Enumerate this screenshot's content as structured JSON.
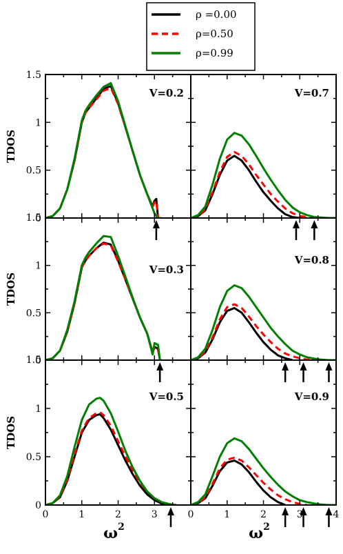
{
  "chart_data": {
    "type": "line",
    "xlabel": "ω",
    "xlabel_superscript": "2",
    "ylabel": "TDOS",
    "xlim": [
      0,
      4
    ],
    "xticks": [
      "0",
      "1",
      "2",
      "3",
      "4"
    ],
    "ylim": [
      0,
      1.5
    ],
    "yticks": [
      "0",
      "0.5",
      "1",
      "1.5"
    ],
    "overlap_label": "1.5",
    "grid": false,
    "legend": {
      "placement": "top-center",
      "entries": [
        {
          "name": "ρ =0.00",
          "color": "#000000",
          "dash": "solid"
        },
        {
          "name": "ρ=0.50",
          "color": "#ff0000",
          "dash": "dashed"
        },
        {
          "name": "ρ=0.99",
          "color": "#008000",
          "dash": "solid"
        }
      ]
    },
    "panels": [
      {
        "label": "V=0.2",
        "row": 0,
        "col": 0,
        "label_pos": "upper-right",
        "arrows": [
          3.05
        ],
        "series": [
          {
            "name": "ρ =0.00",
            "color": "#000000",
            "x": [
              0,
              0.2,
              0.4,
              0.6,
              0.8,
              1.0,
              1.1,
              1.2,
              1.4,
              1.6,
              1.8,
              2.0,
              2.2,
              2.4,
              2.6,
              2.8,
              2.95,
              3.0,
              3.05,
              3.1,
              3.2
            ],
            "y": [
              0,
              0.02,
              0.1,
              0.3,
              0.6,
              1.0,
              1.1,
              1.15,
              1.25,
              1.35,
              1.38,
              1.2,
              0.95,
              0.7,
              0.45,
              0.25,
              0.12,
              0.18,
              0.2,
              0.0,
              0.0
            ]
          },
          {
            "name": "ρ=0.50",
            "color": "#ff0000",
            "x": [
              0,
              0.2,
              0.4,
              0.6,
              0.8,
              1.0,
              1.1,
              1.2,
              1.4,
              1.6,
              1.8,
              2.0,
              2.2,
              2.4,
              2.6,
              2.8,
              2.95,
              3.0,
              3.05,
              3.1,
              3.2
            ],
            "y": [
              0,
              0.02,
              0.1,
              0.3,
              0.6,
              1.0,
              1.1,
              1.15,
              1.24,
              1.33,
              1.36,
              1.19,
              0.95,
              0.7,
              0.45,
              0.25,
              0.12,
              0.16,
              0.18,
              0.0,
              0.0
            ]
          },
          {
            "name": "ρ=0.99",
            "color": "#008000",
            "x": [
              0,
              0.2,
              0.4,
              0.6,
              0.8,
              1.0,
              1.1,
              1.2,
              1.4,
              1.6,
              1.8,
              2.0,
              2.2,
              2.4,
              2.6,
              2.8,
              2.95,
              3.0,
              3.05,
              3.1,
              3.2
            ],
            "y": [
              0,
              0.02,
              0.1,
              0.3,
              0.62,
              1.02,
              1.12,
              1.18,
              1.28,
              1.37,
              1.41,
              1.22,
              0.96,
              0.7,
              0.45,
              0.25,
              0.1,
              0.05,
              0.02,
              0.0,
              0.0
            ]
          }
        ]
      },
      {
        "label": "V=0.7",
        "row": 0,
        "col": 1,
        "label_pos": "upper-right",
        "arrows": [
          2.9,
          3.4
        ],
        "series": [
          {
            "name": "ρ =0.00",
            "color": "#000000",
            "x": [
              0,
              0.2,
              0.4,
              0.6,
              0.8,
              1.0,
              1.2,
              1.4,
              1.6,
              1.8,
              2.0,
              2.2,
              2.4,
              2.6,
              2.8,
              3.0,
              3.2
            ],
            "y": [
              0,
              0.02,
              0.08,
              0.25,
              0.45,
              0.6,
              0.65,
              0.6,
              0.5,
              0.38,
              0.27,
              0.18,
              0.1,
              0.04,
              0.01,
              0,
              0
            ]
          },
          {
            "name": "ρ=0.50",
            "color": "#ff0000",
            "x": [
              0,
              0.2,
              0.4,
              0.6,
              0.8,
              1.0,
              1.2,
              1.4,
              1.6,
              1.8,
              2.0,
              2.2,
              2.4,
              2.6,
              2.8,
              3.0,
              3.2,
              3.4,
              3.6
            ],
            "y": [
              0,
              0.02,
              0.09,
              0.27,
              0.48,
              0.64,
              0.69,
              0.65,
              0.56,
              0.45,
              0.35,
              0.25,
              0.17,
              0.1,
              0.05,
              0.02,
              0.01,
              0,
              0
            ]
          },
          {
            "name": "ρ=0.99",
            "color": "#008000",
            "x": [
              0,
              0.2,
              0.4,
              0.6,
              0.8,
              1.0,
              1.2,
              1.4,
              1.6,
              1.8,
              2.0,
              2.2,
              2.4,
              2.6,
              2.8,
              3.0,
              3.2,
              3.4,
              3.6,
              3.8,
              4.0
            ],
            "y": [
              0,
              0.03,
              0.12,
              0.35,
              0.62,
              0.82,
              0.89,
              0.86,
              0.77,
              0.65,
              0.52,
              0.4,
              0.29,
              0.19,
              0.11,
              0.06,
              0.03,
              0.01,
              0.005,
              0,
              0
            ]
          }
        ]
      },
      {
        "label": "V=0.3",
        "row": 1,
        "col": 0,
        "label_pos": "middle-right",
        "arrows": [
          3.15
        ],
        "series": [
          {
            "name": "ρ =0.00",
            "color": "#000000",
            "x": [
              0,
              0.2,
              0.4,
              0.6,
              0.8,
              1.0,
              1.1,
              1.2,
              1.4,
              1.6,
              1.8,
              2.0,
              2.2,
              2.4,
              2.6,
              2.8,
              2.95,
              3.0,
              3.1,
              3.15,
              3.2
            ],
            "y": [
              0,
              0.02,
              0.1,
              0.3,
              0.6,
              0.98,
              1.05,
              1.1,
              1.18,
              1.24,
              1.22,
              1.05,
              0.85,
              0.65,
              0.45,
              0.28,
              0.08,
              0.14,
              0.12,
              0.0,
              0.0
            ]
          },
          {
            "name": "ρ=0.50",
            "color": "#ff0000",
            "x": [
              0,
              0.2,
              0.4,
              0.6,
              0.8,
              1.0,
              1.1,
              1.2,
              1.4,
              1.6,
              1.8,
              2.0,
              2.2,
              2.4,
              2.6,
              2.8,
              2.95,
              3.0,
              3.1,
              3.15,
              3.2
            ],
            "y": [
              0,
              0.02,
              0.1,
              0.3,
              0.6,
              0.98,
              1.05,
              1.1,
              1.18,
              1.23,
              1.21,
              1.04,
              0.85,
              0.65,
              0.45,
              0.28,
              0.08,
              0.13,
              0.11,
              0.0,
              0.0
            ]
          },
          {
            "name": "ρ=0.99",
            "color": "#008000",
            "x": [
              0,
              0.2,
              0.4,
              0.6,
              0.8,
              1.0,
              1.1,
              1.2,
              1.4,
              1.6,
              1.8,
              2.0,
              2.2,
              2.4,
              2.6,
              2.8,
              2.95,
              3.0,
              3.1,
              3.15,
              3.2
            ],
            "y": [
              0,
              0.02,
              0.1,
              0.32,
              0.62,
              1.0,
              1.08,
              1.14,
              1.23,
              1.31,
              1.3,
              1.1,
              0.88,
              0.66,
              0.45,
              0.28,
              0.06,
              0.18,
              0.16,
              0.0,
              0.0
            ]
          }
        ]
      },
      {
        "label": "V=0.8",
        "row": 1,
        "col": 1,
        "label_pos": "upper-right",
        "arrows": [
          2.6,
          3.1,
          3.8
        ],
        "series": [
          {
            "name": "ρ =0.00",
            "color": "#000000",
            "x": [
              0,
              0.2,
              0.4,
              0.6,
              0.8,
              1.0,
              1.2,
              1.4,
              1.6,
              1.8,
              2.0,
              2.2,
              2.4,
              2.6,
              2.8
            ],
            "y": [
              0,
              0.02,
              0.08,
              0.22,
              0.4,
              0.52,
              0.55,
              0.5,
              0.4,
              0.29,
              0.19,
              0.11,
              0.05,
              0.02,
              0
            ]
          },
          {
            "name": "ρ=0.50",
            "color": "#ff0000",
            "x": [
              0,
              0.2,
              0.4,
              0.6,
              0.8,
              1.0,
              1.2,
              1.4,
              1.6,
              1.8,
              2.0,
              2.2,
              2.4,
              2.6,
              2.8,
              3.0,
              3.2,
              3.4
            ],
            "y": [
              0,
              0.02,
              0.09,
              0.24,
              0.43,
              0.56,
              0.59,
              0.55,
              0.46,
              0.36,
              0.27,
              0.19,
              0.12,
              0.07,
              0.04,
              0.02,
              0.005,
              0
            ]
          },
          {
            "name": "ρ=0.99",
            "color": "#008000",
            "x": [
              0,
              0.2,
              0.4,
              0.6,
              0.8,
              1.0,
              1.2,
              1.4,
              1.6,
              1.8,
              2.0,
              2.2,
              2.4,
              2.6,
              2.8,
              3.0,
              3.2,
              3.4,
              3.6,
              3.8,
              4.0
            ],
            "y": [
              0,
              0.03,
              0.12,
              0.32,
              0.56,
              0.73,
              0.79,
              0.76,
              0.67,
              0.56,
              0.45,
              0.34,
              0.25,
              0.17,
              0.1,
              0.06,
              0.03,
              0.015,
              0.005,
              0,
              0
            ]
          }
        ]
      },
      {
        "label": "V=0.5",
        "row": 2,
        "col": 0,
        "label_pos": "upper-right",
        "arrows": [
          3.45
        ],
        "series": [
          {
            "name": "ρ =0.00",
            "color": "#000000",
            "x": [
              0,
              0.2,
              0.4,
              0.6,
              0.8,
              1.0,
              1.2,
              1.4,
              1.5,
              1.6,
              1.8,
              2.0,
              2.2,
              2.4,
              2.6,
              2.8,
              3.0,
              3.2,
              3.4,
              3.6
            ],
            "y": [
              0,
              0.02,
              0.08,
              0.25,
              0.5,
              0.75,
              0.88,
              0.93,
              0.94,
              0.9,
              0.78,
              0.62,
              0.46,
              0.32,
              0.2,
              0.11,
              0.05,
              0.015,
              0,
              0
            ]
          },
          {
            "name": "ρ=0.50",
            "color": "#ff0000",
            "x": [
              0,
              0.2,
              0.4,
              0.6,
              0.8,
              1.0,
              1.2,
              1.4,
              1.5,
              1.6,
              1.8,
              2.0,
              2.2,
              2.4,
              2.6,
              2.8,
              3.0,
              3.2,
              3.4,
              3.6
            ],
            "y": [
              0,
              0.02,
              0.09,
              0.26,
              0.52,
              0.77,
              0.9,
              0.95,
              0.96,
              0.93,
              0.82,
              0.66,
              0.5,
              0.36,
              0.23,
              0.14,
              0.07,
              0.03,
              0.01,
              0
            ]
          },
          {
            "name": "ρ=0.99",
            "color": "#008000",
            "x": [
              0,
              0.2,
              0.4,
              0.6,
              0.8,
              1.0,
              1.2,
              1.4,
              1.5,
              1.6,
              1.8,
              2.0,
              2.2,
              2.4,
              2.6,
              2.8,
              3.0,
              3.2,
              3.4,
              3.6
            ],
            "y": [
              0,
              0.02,
              0.1,
              0.3,
              0.6,
              0.88,
              1.04,
              1.1,
              1.11,
              1.08,
              0.95,
              0.76,
              0.56,
              0.39,
              0.25,
              0.14,
              0.07,
              0.03,
              0.01,
              0
            ]
          }
        ]
      },
      {
        "label": "V=0.9",
        "row": 2,
        "col": 1,
        "label_pos": "upper-right",
        "arrows": [
          2.6,
          3.1,
          3.8
        ],
        "series": [
          {
            "name": "ρ =0.00",
            "color": "#000000",
            "x": [
              0,
              0.2,
              0.4,
              0.6,
              0.8,
              1.0,
              1.2,
              1.4,
              1.6,
              1.8,
              2.0,
              2.2,
              2.4,
              2.6
            ],
            "y": [
              0,
              0.02,
              0.07,
              0.2,
              0.35,
              0.44,
              0.46,
              0.42,
              0.34,
              0.24,
              0.15,
              0.08,
              0.03,
              0
            ]
          },
          {
            "name": "ρ=0.50",
            "color": "#ff0000",
            "x": [
              0,
              0.2,
              0.4,
              0.6,
              0.8,
              1.0,
              1.2,
              1.4,
              1.6,
              1.8,
              2.0,
              2.2,
              2.4,
              2.6,
              2.8,
              3.0,
              3.2
            ],
            "y": [
              0,
              0.02,
              0.08,
              0.22,
              0.38,
              0.47,
              0.49,
              0.46,
              0.39,
              0.31,
              0.23,
              0.16,
              0.1,
              0.06,
              0.03,
              0.01,
              0
            ]
          },
          {
            "name": "ρ=0.99",
            "color": "#008000",
            "x": [
              0,
              0.2,
              0.4,
              0.6,
              0.8,
              1.0,
              1.2,
              1.4,
              1.6,
              1.8,
              2.0,
              2.2,
              2.4,
              2.6,
              2.8,
              3.0,
              3.2,
              3.4,
              3.6,
              3.8,
              4.0
            ],
            "y": [
              0,
              0.03,
              0.11,
              0.3,
              0.5,
              0.64,
              0.69,
              0.66,
              0.58,
              0.48,
              0.38,
              0.29,
              0.21,
              0.14,
              0.09,
              0.05,
              0.03,
              0.015,
              0.005,
              0,
              0
            ]
          }
        ]
      }
    ]
  }
}
